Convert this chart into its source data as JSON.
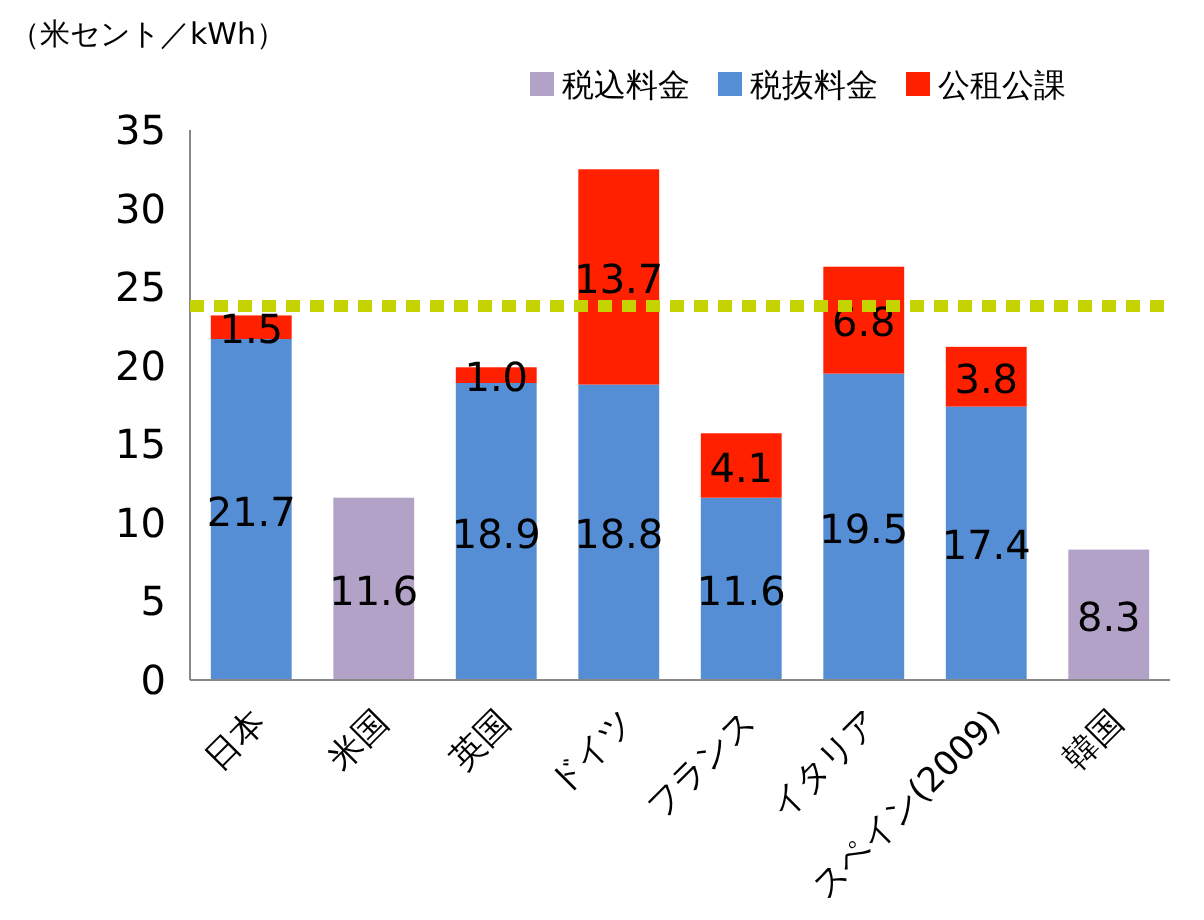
{
  "chart_data": {
    "type": "bar",
    "stacked": true,
    "ylabel": "（米セント／kWh）",
    "categories": [
      "日本",
      "米国",
      "英国",
      "ドイツ",
      "フランス",
      "イタリア",
      "スペイン(2009)",
      "韓国"
    ],
    "series": [
      {
        "name": "税込料金",
        "color": "#b3a2c7",
        "values": [
          null,
          11.6,
          null,
          null,
          null,
          null,
          null,
          8.3
        ],
        "value_labels": [
          null,
          "11.6",
          null,
          null,
          null,
          null,
          null,
          "8.3"
        ]
      },
      {
        "name": "税抜料金",
        "color": "#558ed5",
        "values": [
          21.7,
          null,
          18.9,
          18.8,
          11.6,
          19.5,
          17.4,
          null
        ],
        "value_labels": [
          "21.7",
          null,
          "18.9",
          "18.8",
          "11.6",
          "19.5",
          "17.4",
          null
        ]
      },
      {
        "name": "公租公課",
        "color": "#ff2000",
        "values": [
          1.5,
          null,
          1.0,
          13.7,
          4.1,
          6.8,
          3.8,
          null
        ],
        "value_labels": [
          "1.5",
          null,
          "1.0",
          "13.7",
          "4.1",
          "6.8",
          "3.8",
          null
        ]
      }
    ],
    "ylim": [
      0,
      35
    ],
    "yticks": [
      0,
      5,
      10,
      15,
      20,
      25,
      30,
      35
    ],
    "ref_lines": [
      {
        "axis": "y",
        "value": 23.8,
        "color": "#c5d300",
        "line_style": "dotted"
      }
    ],
    "legend": "top right"
  }
}
